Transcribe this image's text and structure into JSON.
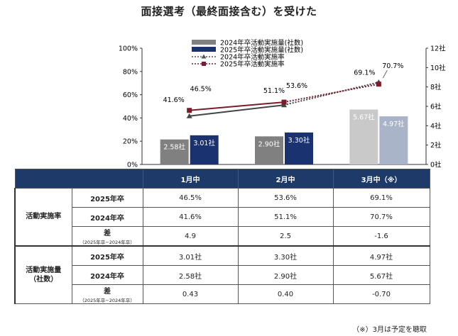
{
  "title": "面接選考（最終面接含む）を受けた",
  "legend": [
    {
      "label": "2024年卒活動実施量(社数)",
      "kind": "bar",
      "color": "#808080"
    },
    {
      "label": "2025年卒活動実施量(社数)",
      "kind": "bar",
      "color": "#1a3270"
    },
    {
      "label": "2024年卒活動実施率",
      "kind": "line-triangle",
      "color": "#555555"
    },
    {
      "label": "2025年卒活動実施率",
      "kind": "line-square",
      "color": "#7a1c2c"
    }
  ],
  "chart_data": {
    "type": "bar+line",
    "categories": [
      "1月中",
      "2月中",
      "3月中（※）"
    ],
    "series": [
      {
        "name": "2024年卒活動実施量(社数)",
        "kind": "bar",
        "axis": "right",
        "values": [
          2.58,
          2.9,
          5.67
        ],
        "labels": [
          "2.58社",
          "2.90社",
          "5.67社"
        ]
      },
      {
        "name": "2025年卒活動実施量(社数)",
        "kind": "bar",
        "axis": "right",
        "values": [
          3.01,
          3.3,
          4.97
        ],
        "labels": [
          "3.01社",
          "3.30社",
          "4.97社"
        ]
      },
      {
        "name": "2024年卒活動実施率",
        "kind": "line",
        "axis": "left",
        "values": [
          41.6,
          51.1,
          70.7
        ],
        "labels": [
          "41.6%",
          "51.1%",
          "70.7%"
        ]
      },
      {
        "name": "2025年卒活動実施率",
        "kind": "line",
        "axis": "left",
        "values": [
          46.5,
          53.6,
          69.1
        ],
        "labels": [
          "46.5%",
          "53.6%",
          "69.1%"
        ]
      }
    ],
    "left_axis": {
      "min": 0,
      "max": 100,
      "ticks": [
        "0%",
        "20%",
        "40%",
        "60%",
        "80%",
        "100%"
      ]
    },
    "right_axis": {
      "min": 0,
      "max": 12,
      "ticks": [
        "0社",
        "2社",
        "4社",
        "6社",
        "8社",
        "10社",
        "12社"
      ]
    },
    "highlight_category_index": 2,
    "grid": false
  },
  "table": {
    "columns": [
      "1月中",
      "2月中",
      "3月中（※）"
    ],
    "groups": [
      {
        "label": "活動実施率",
        "rows": [
          {
            "label": "2025年卒",
            "values": [
              "46.5%",
              "53.6%",
              "69.1%"
            ]
          },
          {
            "label": "2024年卒",
            "values": [
              "41.6%",
              "51.1%",
              "70.7%"
            ]
          },
          {
            "label": "差",
            "note": "（2025年卒−2024年卒）",
            "values": [
              "4.9",
              "2.5",
              "-1.6"
            ]
          }
        ]
      },
      {
        "label": "活動実施量\n（社数）",
        "rows": [
          {
            "label": "2025年卒",
            "values": [
              "3.01社",
              "3.30社",
              "4.97社"
            ]
          },
          {
            "label": "2024年卒",
            "values": [
              "2.58社",
              "2.90社",
              "5.67社"
            ]
          },
          {
            "label": "差",
            "note": "（2025年卒−2024年卒）",
            "values": [
              "0.43",
              "0.40",
              "-0.70"
            ]
          }
        ]
      }
    ]
  },
  "footnote": "（※）3月は予定を聴取"
}
